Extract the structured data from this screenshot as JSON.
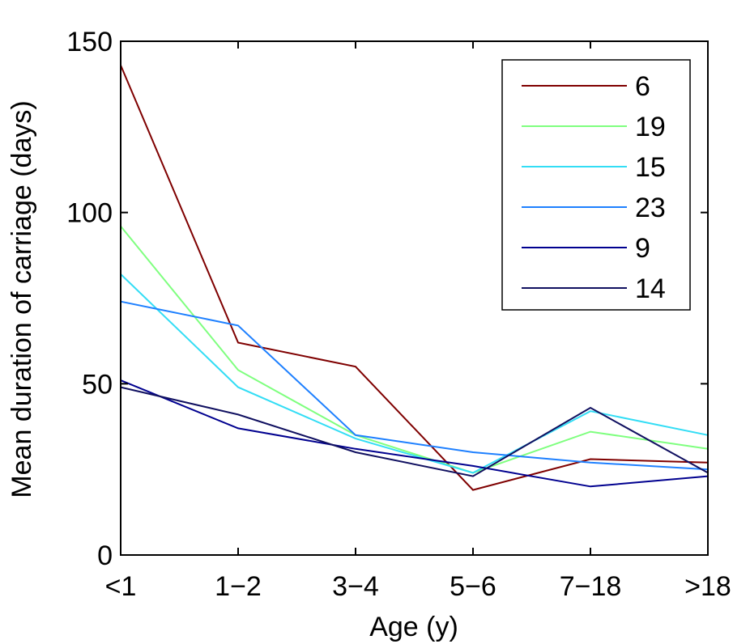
{
  "chart_data": {
    "type": "line",
    "categories": [
      "<1",
      "1−2",
      "3−4",
      "5−6",
      "7−18",
      ">18"
    ],
    "xlabel": "Age (y)",
    "ylabel": "Mean duration of carriage (days)",
    "ylim": [
      0,
      150
    ],
    "yticks": [
      "0",
      "50",
      "100",
      "150"
    ],
    "grid": false,
    "legend_position": "top-right",
    "series": [
      {
        "name": "6",
        "color": "#7f0000",
        "values": [
          143,
          62,
          55,
          19,
          28,
          27
        ]
      },
      {
        "name": "19",
        "color": "#7fff7f",
        "values": [
          96,
          54,
          35,
          24,
          36,
          31
        ]
      },
      {
        "name": "15",
        "color": "#33ddf5",
        "values": [
          82,
          49,
          34,
          24,
          42,
          35
        ]
      },
      {
        "name": "23",
        "color": "#1e80ff",
        "values": [
          74,
          67,
          35,
          30,
          27,
          25
        ]
      },
      {
        "name": "9",
        "color": "#00008f",
        "values": [
          51,
          37,
          31,
          26,
          20,
          23
        ]
      },
      {
        "name": "14",
        "color": "#101060",
        "values": [
          49,
          41,
          30,
          23,
          43,
          24
        ]
      }
    ]
  }
}
